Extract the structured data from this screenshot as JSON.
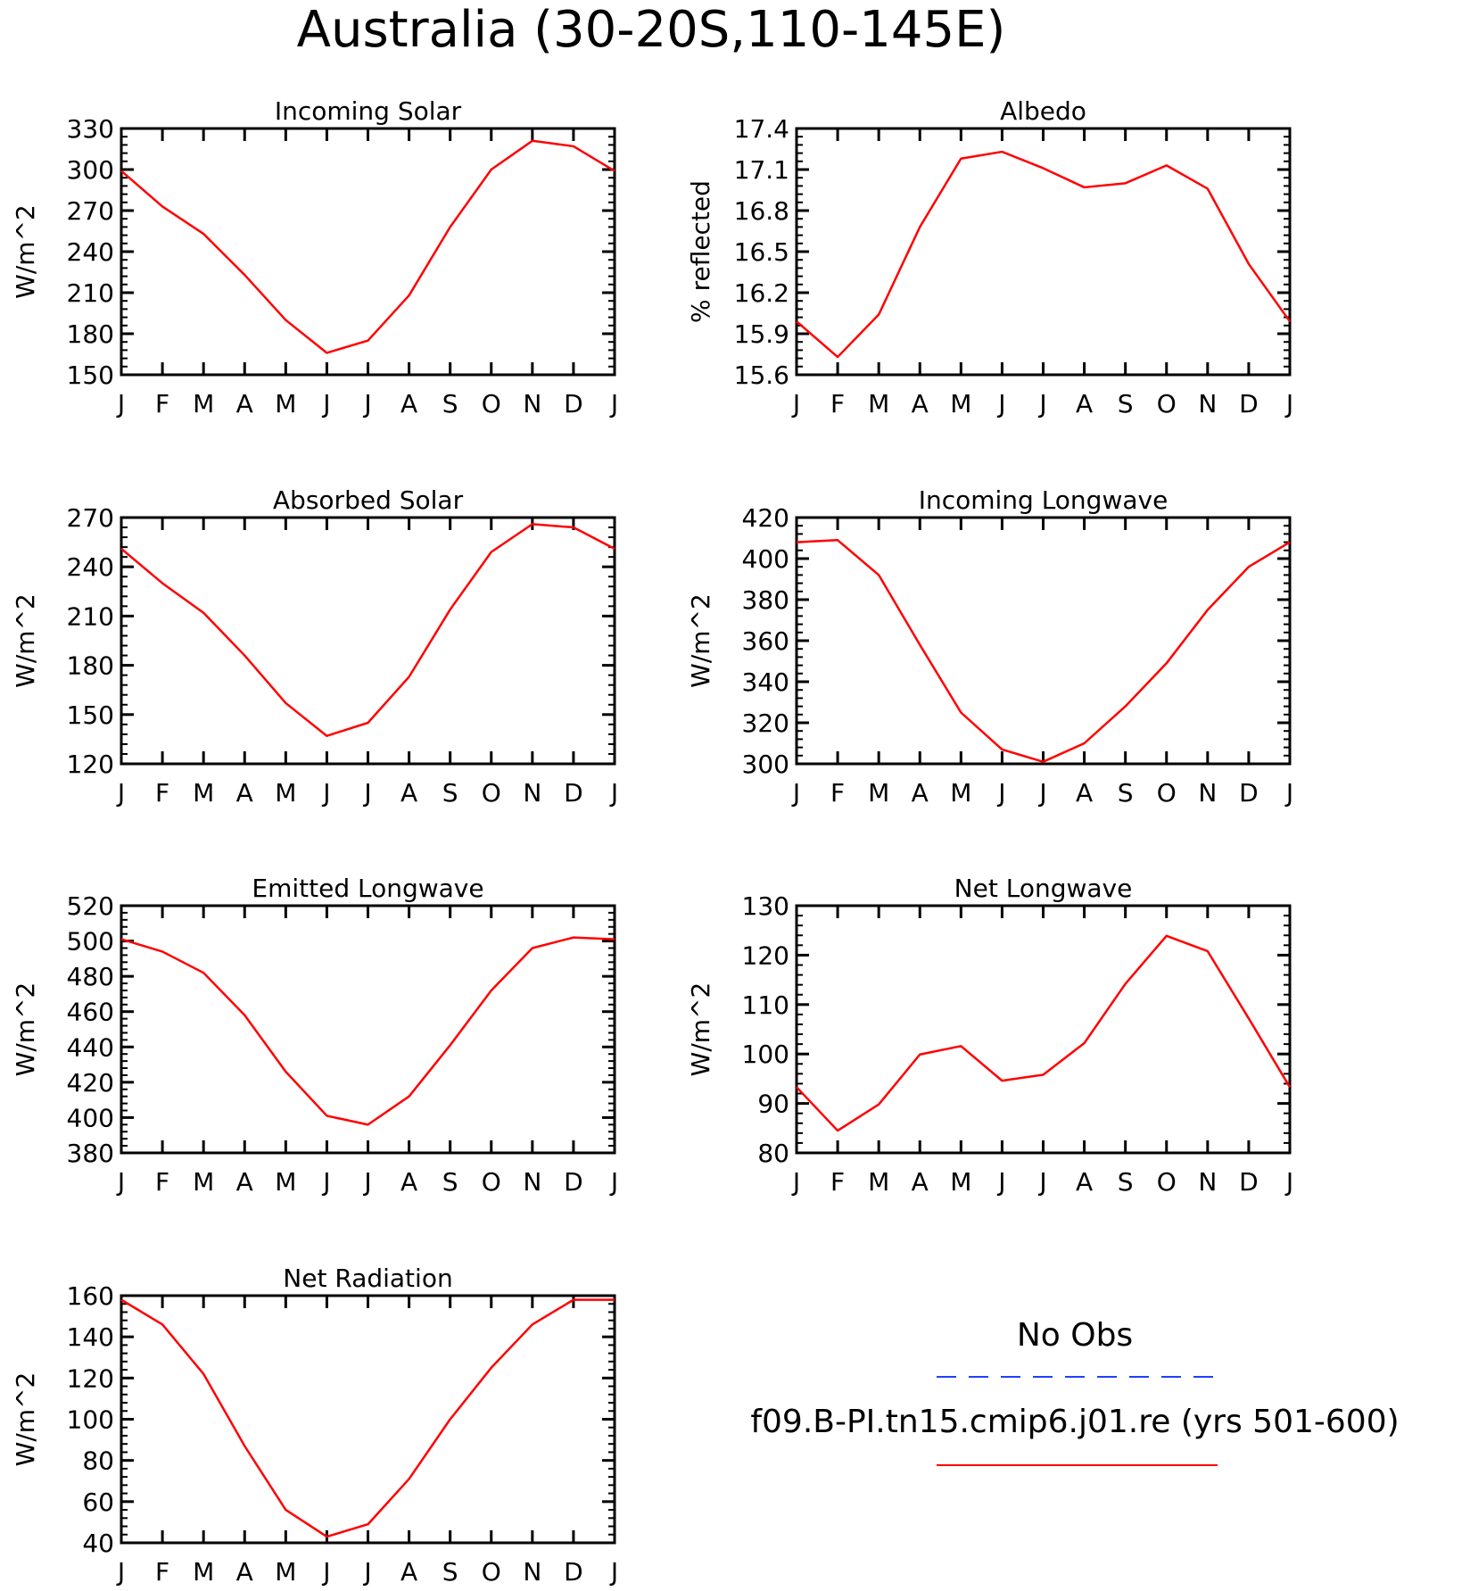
{
  "figure": {
    "title": "Australia (30-20S,110-145E)"
  },
  "legend": {
    "obs_label": "No Obs",
    "obs_color": "#1f3fff",
    "obs_style": "dashed",
    "model_label": "f09.B-PI.tn15.cmip6.j01.re (yrs 501-600)",
    "model_color": "#ff0000",
    "model_style": "solid"
  },
  "chart_data": [
    {
      "type": "line",
      "title": "Incoming Solar",
      "ylabel": "W/m^2",
      "categories": [
        "J",
        "F",
        "M",
        "A",
        "M",
        "J",
        "J",
        "A",
        "S",
        "O",
        "N",
        "D",
        "J"
      ],
      "ylim": [
        150,
        330
      ],
      "yticks": [
        150,
        180,
        210,
        240,
        270,
        300,
        330
      ],
      "series": [
        {
          "name": "f09.B-PI.tn15.cmip6.j01.re (yrs 501-600)",
          "color": "#ff0000",
          "values": [
            299,
            273,
            253,
            223,
            190,
            166,
            175,
            208,
            258,
            300,
            321,
            317,
            299
          ]
        }
      ]
    },
    {
      "type": "line",
      "title": "Albedo",
      "ylabel": "% reflected",
      "categories": [
        "J",
        "F",
        "M",
        "A",
        "M",
        "J",
        "J",
        "A",
        "S",
        "O",
        "N",
        "D",
        "J"
      ],
      "ylim": [
        15.6,
        17.4
      ],
      "yticks": [
        15.6,
        15.9,
        16.2,
        16.5,
        16.8,
        17.1,
        17.4
      ],
      "series": [
        {
          "name": "f09.B-PI.tn15.cmip6.j01.re (yrs 501-600)",
          "color": "#ff0000",
          "values": [
            15.99,
            15.73,
            16.04,
            16.68,
            17.18,
            17.23,
            17.11,
            16.97,
            17.0,
            17.13,
            16.96,
            16.41,
            15.99
          ]
        }
      ]
    },
    {
      "type": "line",
      "title": "Absorbed Solar",
      "ylabel": "W/m^2",
      "categories": [
        "J",
        "F",
        "M",
        "A",
        "M",
        "J",
        "J",
        "A",
        "S",
        "O",
        "N",
        "D",
        "J"
      ],
      "ylim": [
        120,
        270
      ],
      "yticks": [
        120,
        150,
        180,
        210,
        240,
        270
      ],
      "series": [
        {
          "name": "f09.B-PI.tn15.cmip6.j01.re (yrs 501-600)",
          "color": "#ff0000",
          "values": [
            251,
            230,
            212,
            186,
            157,
            137,
            145,
            173,
            214,
            249,
            266,
            264,
            251
          ]
        }
      ]
    },
    {
      "type": "line",
      "title": "Incoming Longwave",
      "ylabel": "W/m^2",
      "categories": [
        "J",
        "F",
        "M",
        "A",
        "M",
        "J",
        "J",
        "A",
        "S",
        "O",
        "N",
        "D",
        "J"
      ],
      "ylim": [
        300,
        420
      ],
      "yticks": [
        300,
        320,
        340,
        360,
        380,
        400,
        420
      ],
      "series": [
        {
          "name": "f09.B-PI.tn15.cmip6.j01.re (yrs 501-600)",
          "color": "#ff0000",
          "values": [
            408,
            409,
            392,
            358,
            325,
            307,
            301,
            310,
            328,
            349,
            375,
            396,
            408
          ]
        }
      ]
    },
    {
      "type": "line",
      "title": "Emitted Longwave",
      "ylabel": "W/m^2",
      "categories": [
        "J",
        "F",
        "M",
        "A",
        "M",
        "J",
        "J",
        "A",
        "S",
        "O",
        "N",
        "D",
        "J"
      ],
      "ylim": [
        380,
        520
      ],
      "yticks": [
        380,
        400,
        420,
        440,
        460,
        480,
        500,
        520
      ],
      "series": [
        {
          "name": "f09.B-PI.tn15.cmip6.j01.re (yrs 501-600)",
          "color": "#ff0000",
          "values": [
            501,
            494,
            482,
            458,
            426,
            401,
            396,
            412,
            441,
            472,
            496,
            502,
            501
          ]
        }
      ]
    },
    {
      "type": "line",
      "title": "Net Longwave",
      "ylabel": "W/m^2",
      "categories": [
        "J",
        "F",
        "M",
        "A",
        "M",
        "J",
        "J",
        "A",
        "S",
        "O",
        "N",
        "D",
        "J"
      ],
      "ylim": [
        80,
        130
      ],
      "yticks": [
        80,
        90,
        100,
        110,
        120,
        130
      ],
      "series": [
        {
          "name": "f09.B-PI.tn15.cmip6.j01.re (yrs 501-600)",
          "color": "#ff0000",
          "values": [
            93.3,
            84.5,
            89.8,
            99.9,
            101.6,
            94.6,
            95.8,
            102.2,
            114.2,
            123.9,
            120.8,
            107.2,
            93.3
          ]
        }
      ]
    },
    {
      "type": "line",
      "title": "Net Radiation",
      "ylabel": "W/m^2",
      "categories": [
        "J",
        "F",
        "M",
        "A",
        "M",
        "J",
        "J",
        "A",
        "S",
        "O",
        "N",
        "D",
        "J"
      ],
      "ylim": [
        40,
        160
      ],
      "yticks": [
        40,
        60,
        80,
        100,
        120,
        140,
        160
      ],
      "series": [
        {
          "name": "f09.B-PI.tn15.cmip6.j01.re (yrs 501-600)",
          "color": "#ff0000",
          "values": [
            158,
            146,
            122,
            87,
            56,
            43,
            49,
            71,
            100,
            125,
            146,
            158,
            158
          ]
        }
      ]
    }
  ]
}
